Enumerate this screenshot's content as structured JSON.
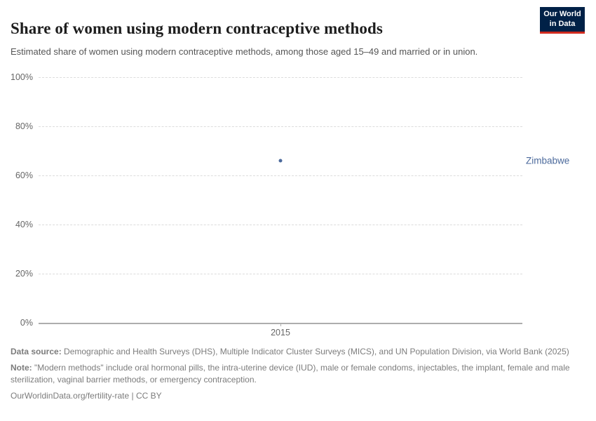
{
  "logo": {
    "line1": "Our World",
    "line2": "in Data",
    "bg_color": "#002147",
    "stripe_color": "#D12B1F"
  },
  "chart_data": {
    "type": "scatter",
    "title": "Share of women using modern contraceptive methods",
    "subtitle": "Estimated share of women using modern contraceptive methods, among those aged 15–49 and married or in union.",
    "series": [
      {
        "name": "Zimbabwe",
        "color": "#4C6A9C",
        "points": [
          {
            "x": 2015,
            "y": 65.9
          }
        ]
      }
    ],
    "x_ticks": [
      {
        "label": "2015",
        "frac": 0.5
      }
    ],
    "y_ticks": [
      {
        "label": "100%",
        "value": 100
      },
      {
        "label": "80%",
        "value": 80
      },
      {
        "label": "60%",
        "value": 60
      },
      {
        "label": "40%",
        "value": 40
      },
      {
        "label": "20%",
        "value": 20
      },
      {
        "label": "0%",
        "value": 0
      }
    ],
    "ylim": [
      0,
      100
    ],
    "xlabel": "",
    "ylabel": "",
    "grid": "horizontal-dashed",
    "legend_position": "entity-label-right"
  },
  "footer": {
    "data_source_label": "Data source:",
    "data_source_text": "Demographic and Health Surveys (DHS), Multiple Indicator Cluster Surveys (MICS), and UN Population Division, via World Bank (2025)",
    "note_label": "Note:",
    "note_text": "\"Modern methods\" include oral hormonal pills, the intra-uterine device (IUD), male or female condoms, injectables, the implant, female and male sterilization, vaginal barrier methods, or emergency contraception.",
    "license_url": "OurWorldinData.org/fertility-rate",
    "license_suffix": " | CC BY"
  }
}
